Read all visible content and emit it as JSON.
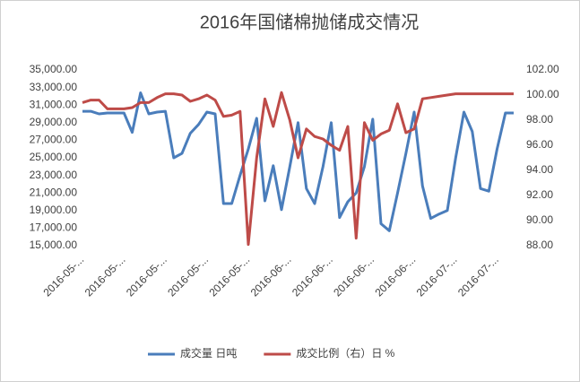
{
  "chart_data": {
    "type": "line",
    "title": "2016年国储棉抛储成交情况",
    "categories": [
      "2016-05-...",
      null,
      null,
      null,
      null,
      "2016-05-...",
      null,
      null,
      null,
      null,
      "2016-05-...",
      null,
      null,
      null,
      null,
      "2016-05-...",
      null,
      null,
      null,
      null,
      "2016-05-...",
      null,
      null,
      null,
      null,
      "2016-06-...",
      null,
      null,
      null,
      null,
      "2016-06-...",
      null,
      null,
      null,
      null,
      "2016-06-...",
      null,
      null,
      null,
      null,
      "2016-06-...",
      null,
      null,
      null,
      null,
      "2016-07-...",
      null,
      null,
      null,
      null,
      "2016-07-...",
      null,
      null
    ],
    "series": [
      {
        "name": "成交量 日吨",
        "color": "#4a7dbb",
        "axis": "y",
        "values": [
          30300,
          30300,
          30000,
          30100,
          30100,
          30100,
          27900,
          32400,
          30000,
          30200,
          30300,
          25000,
          25500,
          27800,
          28800,
          30200,
          30000,
          19800,
          19800,
          23000,
          26000,
          29500,
          20100,
          24100,
          19100,
          24000,
          29000,
          21500,
          19800,
          24000,
          29000,
          18200,
          20000,
          21000,
          24000,
          29400,
          17500,
          16700,
          21000,
          25500,
          30200,
          21800,
          18100,
          18600,
          19000,
          25000,
          30200,
          28000,
          21500,
          21200,
          26000,
          30100,
          30100
        ]
      },
      {
        "name": "成交比例（右）日 %",
        "color": "#be4b48",
        "axis": "y2",
        "values": [
          99.4,
          99.6,
          99.6,
          98.9,
          98.9,
          98.9,
          99.0,
          99.4,
          99.4,
          99.8,
          100.1,
          100.1,
          100.0,
          99.5,
          99.7,
          100.0,
          99.6,
          98.3,
          98.4,
          98.7,
          88.1,
          95.0,
          99.7,
          97.5,
          100.2,
          98.0,
          95.0,
          97.3,
          96.7,
          96.5,
          96.0,
          95.6,
          97.5,
          88.6,
          97.8,
          96.4,
          96.9,
          97.2,
          99.3,
          97.0,
          97.3,
          99.7,
          99.8,
          99.9,
          100.0,
          100.1,
          100.1,
          100.1,
          100.1,
          100.1,
          100.1,
          100.1,
          100.1
        ]
      }
    ],
    "ylim": [
      15000,
      35000
    ],
    "yticks": [
      {
        "value": 15000,
        "label": "15,000.00"
      },
      {
        "value": 17000,
        "label": "17,000.00"
      },
      {
        "value": 19000,
        "label": "19,000.00"
      },
      {
        "value": 21000,
        "label": "21,000.00"
      },
      {
        "value": 23000,
        "label": "23,000.00"
      },
      {
        "value": 25000,
        "label": "25,000.00"
      },
      {
        "value": 27000,
        "label": "27,000.00"
      },
      {
        "value": 29000,
        "label": "29,000.00"
      },
      {
        "value": 31000,
        "label": "31,000.00"
      },
      {
        "value": 33000,
        "label": "33,000.00"
      },
      {
        "value": 35000,
        "label": "35,000.00"
      }
    ],
    "y2lim": [
      88,
      102
    ],
    "y2ticks": [
      {
        "value": 88,
        "label": "88.00"
      },
      {
        "value": 90,
        "label": "90.00"
      },
      {
        "value": 92,
        "label": "92.00"
      },
      {
        "value": 94,
        "label": "94.00"
      },
      {
        "value": 96,
        "label": "96.00"
      },
      {
        "value": 98,
        "label": "98.00"
      },
      {
        "value": 100,
        "label": "100.00"
      },
      {
        "value": 102,
        "label": "102.00"
      }
    ],
    "grid": false,
    "legend": "bottom"
  }
}
